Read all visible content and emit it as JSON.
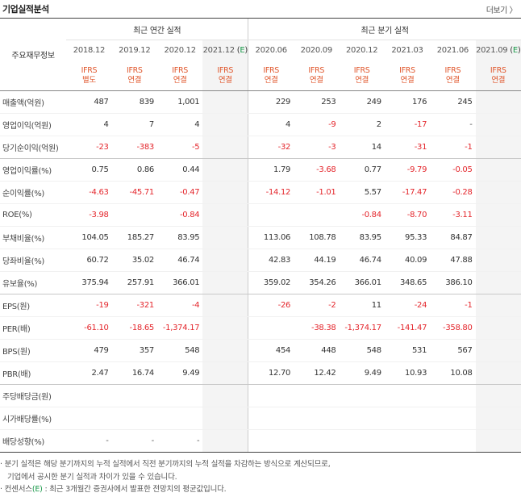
{
  "header": {
    "title": "기업실적분석",
    "more_label": "더보기"
  },
  "table": {
    "row_header": "주요재무정보",
    "groups": [
      "최근 연간 실적",
      "최근 분기 실적"
    ],
    "periods": [
      {
        "date": "2018.12",
        "basis": [
          "IFRS",
          "별도"
        ],
        "estimate": false
      },
      {
        "date": "2019.12",
        "basis": [
          "IFRS",
          "연결"
        ],
        "estimate": false
      },
      {
        "date": "2020.12",
        "basis": [
          "IFRS",
          "연결"
        ],
        "estimate": false
      },
      {
        "date": "2021.12",
        "basis": [
          "IFRS",
          "연결"
        ],
        "estimate": true,
        "est_mark": "E"
      },
      {
        "date": "2020.06",
        "basis": [
          "IFRS",
          "연결"
        ],
        "estimate": false
      },
      {
        "date": "2020.09",
        "basis": [
          "IFRS",
          "연결"
        ],
        "estimate": false
      },
      {
        "date": "2020.12",
        "basis": [
          "IFRS",
          "연결"
        ],
        "estimate": false
      },
      {
        "date": "2021.03",
        "basis": [
          "IFRS",
          "연결"
        ],
        "estimate": false
      },
      {
        "date": "2021.06",
        "basis": [
          "IFRS",
          "연결"
        ],
        "estimate": false
      },
      {
        "date": "2021.09",
        "basis": [
          "IFRS",
          "연결"
        ],
        "estimate": true,
        "est_mark": "E"
      }
    ],
    "rows": [
      {
        "label": "매출액(억원)",
        "values": [
          "487",
          "839",
          "1,001",
          "",
          "229",
          "253",
          "249",
          "176",
          "245",
          ""
        ]
      },
      {
        "label": "영업이익(억원)",
        "values": [
          "4",
          "7",
          "4",
          "",
          "4",
          "-9",
          "2",
          "-17",
          "-",
          ""
        ]
      },
      {
        "label": "당기순이익(억원)",
        "values": [
          "-23",
          "-383",
          "-5",
          "",
          "-32",
          "-3",
          "14",
          "-31",
          "-1",
          ""
        ]
      },
      {
        "label": "영업이익률(%)",
        "values": [
          "0.75",
          "0.86",
          "0.44",
          "",
          "1.79",
          "-3.68",
          "0.77",
          "-9.79",
          "-0.05",
          ""
        ]
      },
      {
        "label": "순이익률(%)",
        "values": [
          "-4.63",
          "-45.71",
          "-0.47",
          "",
          "-14.12",
          "-1.01",
          "5.57",
          "-17.47",
          "-0.28",
          ""
        ]
      },
      {
        "label": "ROE(%)",
        "values": [
          "-3.98",
          "",
          "-0.84",
          "",
          "",
          "",
          "-0.84",
          "-8.70",
          "-3.11",
          ""
        ]
      },
      {
        "label": "부채비율(%)",
        "values": [
          "104.05",
          "185.27",
          "83.95",
          "",
          "113.06",
          "108.78",
          "83.95",
          "95.33",
          "84.87",
          ""
        ]
      },
      {
        "label": "당좌비율(%)",
        "values": [
          "60.72",
          "35.02",
          "46.74",
          "",
          "42.83",
          "44.19",
          "46.74",
          "40.09",
          "47.88",
          ""
        ]
      },
      {
        "label": "유보율(%)",
        "values": [
          "375.94",
          "257.91",
          "366.01",
          "",
          "359.02",
          "354.26",
          "366.01",
          "348.65",
          "386.10",
          ""
        ]
      },
      {
        "label": "EPS(원)",
        "values": [
          "-19",
          "-321",
          "-4",
          "",
          "-26",
          "-2",
          "11",
          "-24",
          "-1",
          ""
        ]
      },
      {
        "label": "PER(배)",
        "values": [
          "-61.10",
          "-18.65",
          "-1,374.17",
          "",
          "",
          "-38.38",
          "-1,374.17",
          "-141.47",
          "-358.80",
          ""
        ]
      },
      {
        "label": "BPS(원)",
        "values": [
          "479",
          "357",
          "548",
          "",
          "454",
          "448",
          "548",
          "531",
          "567",
          ""
        ]
      },
      {
        "label": "PBR(배)",
        "values": [
          "2.47",
          "16.74",
          "9.49",
          "",
          "12.70",
          "12.42",
          "9.49",
          "10.93",
          "10.08",
          ""
        ]
      },
      {
        "label": "주당배당금(원)",
        "values": [
          "",
          "",
          "",
          "",
          "",
          "",
          "",
          "",
          "",
          ""
        ]
      },
      {
        "label": "시가배당률(%)",
        "values": [
          "",
          "",
          "",
          "",
          "",
          "",
          "",
          "",
          "",
          ""
        ]
      },
      {
        "label": "배당성향(%)",
        "values": [
          "-",
          "-",
          "-",
          "",
          "",
          "",
          "",
          "",
          "",
          ""
        ]
      }
    ]
  },
  "notes": {
    "line1": "· 분기 실적은 해당 분기까지의 누적 실적에서 직전 분기까지의 누적 실적을 차감하는 방식으로 계산되므로,",
    "line2": "기업에서 공시한 분기 실적과 차이가 있을 수 있습니다.",
    "line3_prefix": "· 컨센서스",
    "line3_mark": "(E)",
    "line3_suffix": " : 최근 3개월간 증권사에서 발표한 전망치의 평균값입니다."
  },
  "colors": {
    "negative": "#e4262c",
    "ifrs": "#e0582e",
    "estimate": "#1a9a4a",
    "forecast_bg": "#f4f4f4"
  }
}
